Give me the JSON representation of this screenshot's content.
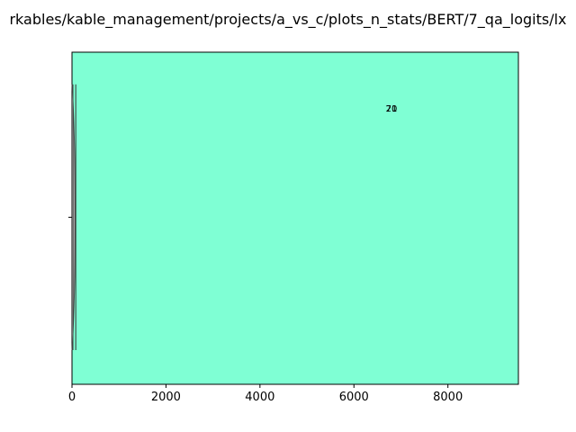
{
  "chart_data": {
    "type": "violin",
    "title": "rkables/kable_management/projects/a_vs_c/plots_n_stats/BERT/7_qa_logits/lx",
    "xlabel": "",
    "ylabel": "",
    "xlim": [
      0,
      9500
    ],
    "x_ticks": [
      "0",
      "2000",
      "4000",
      "6000",
      "8000"
    ],
    "x_tick_values": [
      0,
      2000,
      4000,
      6000,
      8000
    ],
    "y_ticks": [
      ""
    ],
    "grid": false,
    "legend": "none",
    "series": [
      {
        "whisker_low": 0,
        "whisker_high": 80,
        "violin_max": 90
      }
    ],
    "annotations": [
      {
        "text": "70",
        "x": 6800
      },
      {
        "text": "21",
        "x": 6800
      }
    ],
    "colors": {
      "plot_background": "#7fffd4",
      "violin_fill": "#a9a9a9",
      "violin_edge": "#4d4d4d",
      "axis": "#000000"
    }
  }
}
